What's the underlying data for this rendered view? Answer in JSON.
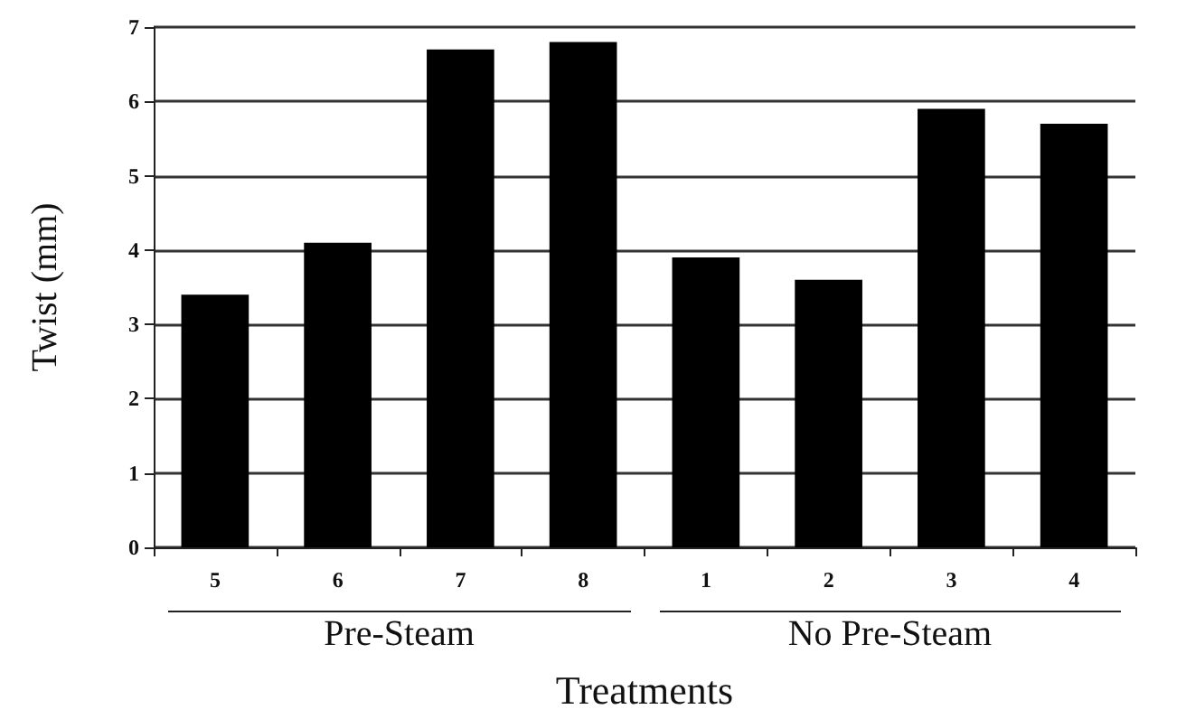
{
  "chart_data": {
    "type": "bar",
    "xlabel": "Treatments",
    "ylabel": "Twist (mm)",
    "categories": [
      "5",
      "6",
      "7",
      "8",
      "1",
      "2",
      "3",
      "4"
    ],
    "series": [
      {
        "color": "#000000",
        "values": [
          3.4,
          4.1,
          6.7,
          6.8,
          3.9,
          3.6,
          5.9,
          5.7
        ]
      }
    ],
    "ylim": [
      0,
      7
    ],
    "yticks": [
      0,
      1,
      2,
      3,
      4,
      5,
      6,
      7
    ],
    "grid": "y",
    "annotations": [
      "Pre-Steam",
      "No Pre-Steam"
    ]
  }
}
